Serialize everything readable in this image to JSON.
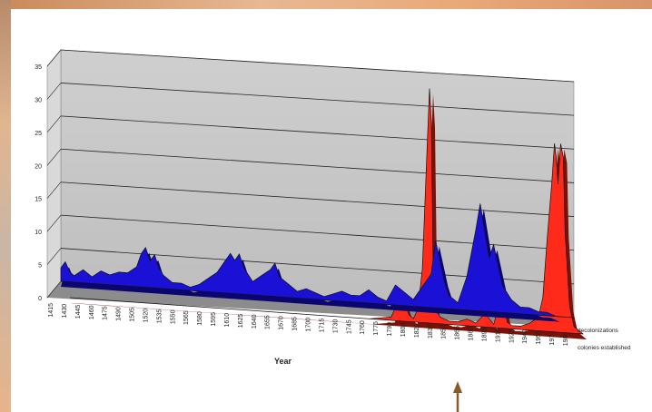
{
  "chart_data": {
    "type": "area",
    "title": "",
    "xlabel": "Year",
    "ylabel": "",
    "ylim": [
      0,
      35
    ],
    "yticks": [
      0,
      5,
      10,
      15,
      20,
      25,
      30,
      35
    ],
    "grid": true,
    "legend_position": "right",
    "x_tick_labels": [
      "1415",
      "1430",
      "1445",
      "1460",
      "1475",
      "1490",
      "1505",
      "1520",
      "1535",
      "1550",
      "1565",
      "1580",
      "1595",
      "1610",
      "1625",
      "1640",
      "1655",
      "1670",
      "1685",
      "1700",
      "1715",
      "1730",
      "1745",
      "1760",
      "1775",
      "1790",
      "1805",
      "1820",
      "1835",
      "1850",
      "1865",
      "1880",
      "1895",
      "1910",
      "1925",
      "1940",
      "1955",
      "1970",
      "1985"
    ],
    "series": [
      {
        "name": "decolonizations",
        "color": "#ff2a1a",
        "x": [
          1415,
          1450,
          1500,
          1550,
          1600,
          1650,
          1700,
          1750,
          1775,
          1780,
          1785,
          1790,
          1795,
          1800,
          1805,
          1810,
          1815,
          1818,
          1820,
          1822,
          1825,
          1830,
          1840,
          1850,
          1860,
          1870,
          1880,
          1890,
          1895,
          1900,
          1905,
          1910,
          1920,
          1930,
          1940,
          1945,
          1950,
          1955,
          1958,
          1960,
          1962,
          1965,
          1968,
          1970,
          1975,
          1980,
          1985,
          1990
        ],
        "values": [
          0,
          0,
          0,
          0,
          0,
          0,
          0,
          0,
          0.5,
          2,
          4,
          3,
          1,
          0.5,
          2,
          8,
          25,
          35,
          30,
          10,
          2,
          1,
          0.5,
          0.5,
          1,
          0.5,
          2,
          0.5,
          3,
          5,
          1,
          0.5,
          0.5,
          1,
          2,
          5,
          14,
          22,
          28,
          26,
          22,
          28,
          26,
          15,
          4,
          1,
          0.5,
          0
        ]
      },
      {
        "name": "colonies established",
        "color": "#1a10d6",
        "x": [
          1415,
          1420,
          1425,
          1430,
          1440,
          1450,
          1460,
          1470,
          1480,
          1490,
          1500,
          1505,
          1510,
          1515,
          1520,
          1525,
          1530,
          1540,
          1550,
          1560,
          1570,
          1580,
          1590,
          1600,
          1605,
          1610,
          1615,
          1620,
          1630,
          1640,
          1650,
          1655,
          1660,
          1670,
          1680,
          1690,
          1700,
          1710,
          1720,
          1730,
          1740,
          1750,
          1760,
          1770,
          1780,
          1790,
          1800,
          1810,
          1820,
          1830,
          1835,
          1840,
          1845,
          1850,
          1860,
          1870,
          1880,
          1885,
          1890,
          1895,
          1900,
          1910,
          1920,
          1930,
          1940,
          1950,
          1960,
          1970,
          1980,
          1990
        ],
        "values": [
          2,
          3,
          1.5,
          1,
          2,
          1,
          2,
          1.5,
          2,
          2,
          3,
          5,
          6,
          4,
          5,
          3,
          2,
          1,
          1,
          0.5,
          1,
          2,
          3,
          5,
          6,
          5,
          6,
          4,
          2,
          3,
          4,
          5,
          3,
          2,
          1,
          1.5,
          1,
          0.5,
          1,
          1.5,
          1,
          1,
          2,
          1,
          0.5,
          3,
          2,
          1,
          3,
          5,
          10,
          7,
          4,
          2,
          1,
          5,
          12,
          16,
          12,
          8,
          10,
          4,
          2,
          1,
          1,
          0.5,
          0.5,
          0,
          0,
          0
        ]
      }
    ],
    "annotations": [
      {
        "type": "arrow",
        "direction": "up",
        "color": "#8b5a2b",
        "points_to_year": 1880
      }
    ]
  }
}
